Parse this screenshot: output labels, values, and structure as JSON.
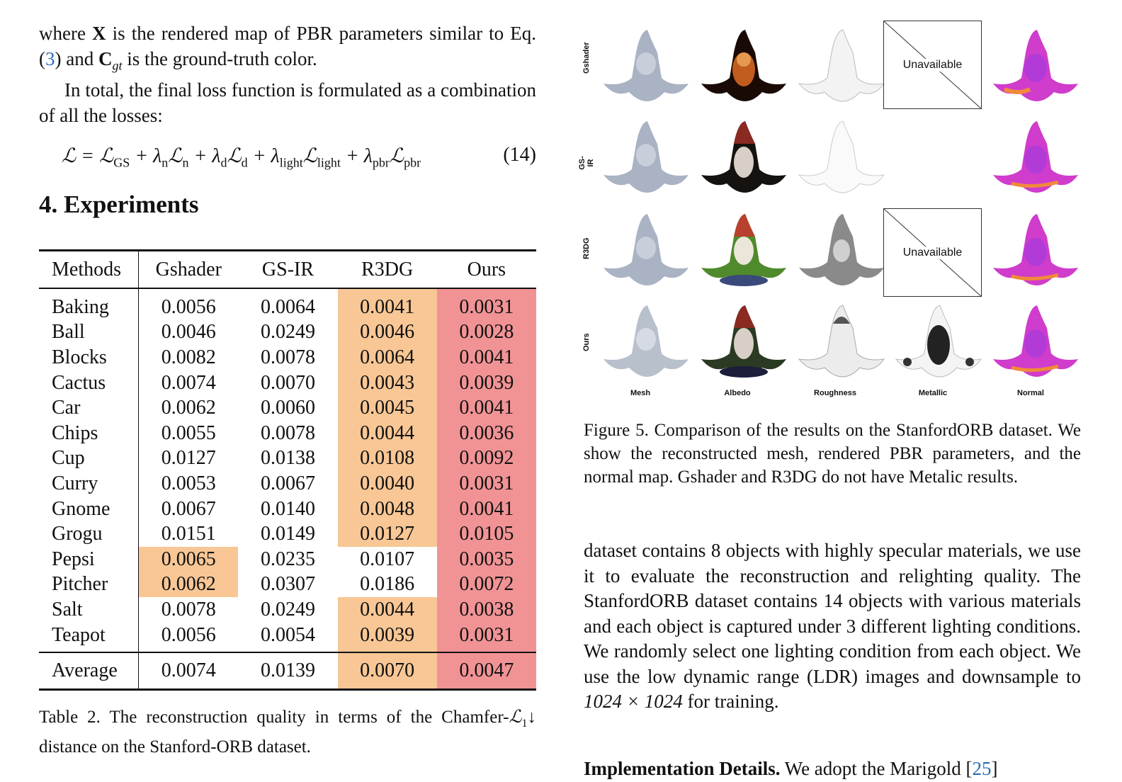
{
  "intro": {
    "line1_a": "where ",
    "line1_X": "X",
    "line1_b": " is the rendered map of PBR parameters similar to Eq. (",
    "line1_ref": "3",
    "line1_c": ") and ",
    "line1_C": "C",
    "line1_Csub": "gt",
    "line1_d": " is the ground-truth color.",
    "para2": "In total, the final loss function is formulated as a combination of all the losses:"
  },
  "equation": {
    "number": "(14)"
  },
  "section": {
    "title": "4. Experiments"
  },
  "table": {
    "headers": [
      "Methods",
      "Gshader",
      "GS-IR",
      "R3DG",
      "Ours"
    ],
    "rows": [
      {
        "name": "Baking",
        "values": [
          "0.0056",
          "0.0064",
          "0.0041",
          "0.0031"
        ]
      },
      {
        "name": "Ball",
        "values": [
          "0.0046",
          "0.0249",
          "0.0046",
          "0.0028"
        ]
      },
      {
        "name": "Blocks",
        "values": [
          "0.0082",
          "0.0078",
          "0.0064",
          "0.0041"
        ]
      },
      {
        "name": "Cactus",
        "values": [
          "0.0074",
          "0.0070",
          "0.0043",
          "0.0039"
        ]
      },
      {
        "name": "Car",
        "values": [
          "0.0062",
          "0.0060",
          "0.0045",
          "0.0041"
        ]
      },
      {
        "name": "Chips",
        "values": [
          "0.0055",
          "0.0078",
          "0.0044",
          "0.0036"
        ]
      },
      {
        "name": "Cup",
        "values": [
          "0.0127",
          "0.0138",
          "0.0108",
          "0.0092"
        ]
      },
      {
        "name": "Curry",
        "values": [
          "0.0053",
          "0.0067",
          "0.0040",
          "0.0031"
        ]
      },
      {
        "name": "Gnome",
        "values": [
          "0.0067",
          "0.0140",
          "0.0048",
          "0.0041"
        ]
      },
      {
        "name": "Grogu",
        "values": [
          "0.0151",
          "0.0149",
          "0.0127",
          "0.0105"
        ]
      },
      {
        "name": "Pepsi",
        "values": [
          "0.0065",
          "0.0235",
          "0.0107",
          "0.0035"
        ]
      },
      {
        "name": "Pitcher",
        "values": [
          "0.0062",
          "0.0307",
          "0.0186",
          "0.0072"
        ]
      },
      {
        "name": "Salt",
        "values": [
          "0.0078",
          "0.0249",
          "0.0044",
          "0.0038"
        ]
      },
      {
        "name": "Teapot",
        "values": [
          "0.0056",
          "0.0054",
          "0.0039",
          "0.0031"
        ]
      }
    ],
    "average": {
      "name": "Average",
      "values": [
        "0.0074",
        "0.0139",
        "0.0070",
        "0.0047"
      ]
    },
    "highlight_colors": {
      "second": "#f8c795",
      "best": "#f19395"
    }
  },
  "table_caption": "Table 2. The reconstruction quality in terms of the Chamfer-",
  "table_caption_tail": "distance on the Stanford-ORB dataset.",
  "figure": {
    "row_labels": [
      "Gshader",
      "GS-IR",
      "R3DG",
      "Ours"
    ],
    "col_labels": [
      "Mesh",
      "Albedo",
      "Roughness",
      "Metallic",
      "Normal"
    ],
    "unavailable_text": "Unavailable"
  },
  "figure_caption": "Figure 5. Comparison of the results on the StanfordORB dataset. We show the reconstructed mesh, rendered PBR parameters, and the normal map. Gshader and R3DG do not have Metalic results.",
  "right_para": {
    "text": "dataset contains 8 objects with highly specular materials, we use it to evaluate the reconstruction and relighting quality. The StanfordORB dataset contains 14 objects with various materials and each object is captured under 3 different lighting conditions. We randomly select one lighting condition from each object. We use the low dynamic range (LDR) images and downsample to ",
    "res": "1024 × 1024",
    "tail": " for training."
  },
  "impl": {
    "heading": "Implementation Details.",
    "text": " We adopt the Marigold [",
    "ref": "25",
    "close": "]"
  }
}
